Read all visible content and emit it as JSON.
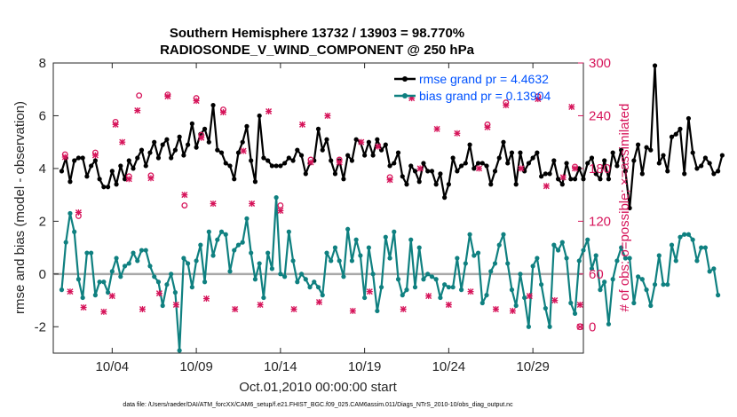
{
  "chart_data": {
    "type": "line",
    "title": "Southern Hemisphere 13732 / 13903 = 98.770%",
    "subtitle": "RADIOSONDE_V_WIND_COMPONENT @ 250 hPa",
    "xlabel": "Oct.01,2010 00:00:00 start",
    "ylabel": "rmse and bias (model - observation)",
    "y2label": "# of obs: o=possible; ×=assimilated",
    "footnote": "data file: /Users/raeder/DAI/ATM_forcXX/CAM6_setup/f.e21.FHIST_BGC.f09_025.CAM6assim.011/Diags_NTrS_2010-10/obs_diag_output.nc",
    "xlim": [
      0.5,
      32.0
    ],
    "ylim": [
      -3,
      8
    ],
    "y2lim": [
      -30,
      300
    ],
    "x_ticks": [
      4,
      9,
      14,
      19,
      24,
      29
    ],
    "x_tick_labels": [
      "10/04",
      "10/09",
      "10/14",
      "10/19",
      "10/24",
      "10/29"
    ],
    "y_ticks": [
      -2,
      0,
      2,
      4,
      6,
      8
    ],
    "y_tick_labels": [
      "-2",
      "0",
      "2",
      "4",
      "6",
      "8"
    ],
    "y2_ticks": [
      0,
      60,
      120,
      180,
      240,
      300
    ],
    "y2_tick_labels": [
      "0",
      "60",
      "120",
      "180",
      "240",
      "300"
    ],
    "colors": {
      "rmse": "#000000",
      "bias": "#0f8080",
      "obs": "#d6145a",
      "zero_line": "#a9a9a9",
      "legend_text": "#0052ff"
    },
    "x_start": 1.0,
    "x_step": 0.25,
    "series": [
      {
        "name": "rmse grand pr = 4.4632",
        "marker": "circle-filled",
        "values": [
          3.9,
          4.4,
          3.5,
          4.3,
          4.4,
          4.4,
          3.7,
          4.1,
          4.3,
          3.6,
          3.3,
          3.3,
          3.9,
          3.4,
          4.1,
          3.6,
          4.3,
          4.0,
          4.4,
          4.7,
          4.1,
          4.6,
          5.0,
          4.4,
          4.9,
          5.1,
          4.4,
          4.7,
          5.2,
          4.5,
          4.9,
          5.7,
          4.8,
          5.3,
          5.5,
          5.0,
          6.4,
          4.7,
          4.6,
          4.2,
          4.1,
          3.6,
          4.6,
          5.0,
          5.6,
          4.3,
          3.5,
          6.0,
          4.4,
          4.3,
          4.1,
          4.1,
          4.1,
          4.2,
          4.4,
          4.3,
          4.7,
          4.5,
          3.8,
          4.2,
          4.3,
          5.5,
          4.7,
          5.1,
          4.3,
          3.8,
          4.3,
          3.6,
          4.5,
          4.3,
          5.1,
          5.0,
          4.5,
          5.0,
          4.5,
          5.1,
          4.7,
          4.9,
          4.1,
          4.2,
          4.6,
          3.7,
          3.4,
          4.1,
          3.9,
          3.5,
          4.2,
          3.9,
          3.9,
          3.4,
          3.8,
          2.9,
          3.4,
          4.4,
          3.9,
          4.1,
          4.2,
          4.9,
          4.0,
          4.2,
          4.2,
          4.1,
          3.4,
          3.9,
          4.4,
          5.0,
          4.2,
          4.6,
          3.4,
          4.6,
          3.9,
          4.2,
          4.4,
          4.6,
          3.7,
          3.8,
          3.8,
          4.3,
          3.6,
          3.4,
          4.2,
          3.6,
          3.6,
          4.0,
          3.6,
          4.2,
          4.4,
          3.8,
          3.6,
          4.3,
          3.6,
          4.6,
          4.1,
          4.7,
          3.9,
          2.5,
          4.3,
          4.9,
          3.8,
          4.8,
          4.7,
          7.9,
          4.2,
          4.5,
          3.9,
          5.2,
          5.3,
          5.5,
          3.8,
          5.9,
          4.6,
          4.0,
          4.1,
          4.4,
          4.2,
          3.8,
          3.9,
          4.5
        ]
      },
      {
        "name": "bias grand pr = 0.13904",
        "marker": "circle-filled",
        "values": [
          -0.6,
          1.2,
          2.3,
          1.6,
          -0.2,
          -0.9,
          0.8,
          0.8,
          -0.8,
          -0.3,
          -0.3,
          -0.7,
          0.1,
          0.6,
          -0.1,
          0.3,
          0.4,
          0.8,
          0.5,
          0.9,
          0.9,
          0.3,
          -0.1,
          -0.3,
          -1.2,
          -0.4,
          0.0,
          -0.7,
          -2.9,
          0.6,
          0.4,
          -0.5,
          0.5,
          1.1,
          -0.3,
          1.6,
          0.7,
          1.3,
          1.6,
          1.5,
          0.1,
          0.9,
          1.1,
          1.2,
          2.1,
          0.8,
          -0.2,
          0.4,
          -0.9,
          0.8,
          0.2,
          2.9,
          0.0,
          -0.1,
          1.6,
          0.5,
          -0.3,
          0.0,
          -0.2,
          -0.5,
          -0.3,
          -0.5,
          -0.8,
          0.8,
          0.5,
          1.0,
          0.5,
          -0.1,
          1.7,
          0.5,
          1.3,
          0.7,
          -0.9,
          1.0,
          0.0,
          -1.4,
          -0.5,
          1.4,
          0.6,
          1.6,
          -0.2,
          -0.8,
          -0.6,
          1.3,
          -0.5,
          1.0,
          -0.2,
          0.0,
          -0.1,
          -0.2,
          -0.9,
          -0.4,
          -0.5,
          -0.5,
          0.6,
          -0.6,
          0.4,
          1.5,
          0.7,
          0.8,
          -1.1,
          -0.8,
          0.1,
          0.4,
          1.1,
          1.5,
          0.4,
          -0.6,
          -1.2,
          0.0,
          -0.9,
          -2.0,
          0.3,
          0.6,
          -0.4,
          -1.3,
          -2.0,
          1.1,
          0.9,
          1.2,
          0.6,
          -1.1,
          -1.5,
          0.5,
          0.9,
          1.3,
          0.2,
          0.7,
          -0.6,
          -0.3,
          -1.9,
          -0.2,
          0.5,
          1.0,
          0.6,
          0.6,
          -1.1,
          -0.1,
          -0.2,
          -0.6,
          -1.2,
          -0.4,
          0.7,
          -0.4,
          -0.4,
          1.1,
          0.5,
          1.4,
          1.5,
          1.5,
          1.3,
          0.5,
          1.0,
          1.0,
          0.1,
          0.2,
          -0.8
        ]
      }
    ],
    "obs_possible": [
      {
        "x": 1.2,
        "y": 196
      },
      {
        "x": 2.0,
        "y": 126
      },
      {
        "x": 3.0,
        "y": 198
      },
      {
        "x": 4.2,
        "y": 233
      },
      {
        "x": 5.0,
        "y": 171
      },
      {
        "x": 5.6,
        "y": 263
      },
      {
        "x": 6.3,
        "y": 172
      },
      {
        "x": 7.3,
        "y": 264
      },
      {
        "x": 8.3,
        "y": 138
      },
      {
        "x": 9.0,
        "y": 260
      },
      {
        "x": 9.3,
        "y": 218
      },
      {
        "x": 10.6,
        "y": 247
      },
      {
        "x": 14.0,
        "y": 138
      },
      {
        "x": 15.8,
        "y": 190
      },
      {
        "x": 17.5,
        "y": 190
      },
      {
        "x": 20.5,
        "y": 170
      },
      {
        "x": 26.3,
        "y": 230
      },
      {
        "x": 27.4,
        "y": 255
      },
      {
        "x": 29.3,
        "y": 262
      },
      {
        "x": 31.5,
        "y": 182
      }
    ],
    "obs_assimilated": [
      {
        "x": 1.2,
        "y": 193
      },
      {
        "x": 1.5,
        "y": 40
      },
      {
        "x": 2.0,
        "y": 130
      },
      {
        "x": 2.3,
        "y": 22
      },
      {
        "x": 3.0,
        "y": 195
      },
      {
        "x": 3.5,
        "y": 17
      },
      {
        "x": 4.0,
        "y": 35
      },
      {
        "x": 4.2,
        "y": 230
      },
      {
        "x": 4.6,
        "y": 210
      },
      {
        "x": 5.0,
        "y": 168
      },
      {
        "x": 5.5,
        "y": 246
      },
      {
        "x": 5.8,
        "y": 20
      },
      {
        "x": 6.3,
        "y": 169
      },
      {
        "x": 6.8,
        "y": 38
      },
      {
        "x": 7.3,
        "y": 262
      },
      {
        "x": 7.8,
        "y": 25
      },
      {
        "x": 8.3,
        "y": 150
      },
      {
        "x": 9.0,
        "y": 257
      },
      {
        "x": 9.3,
        "y": 215
      },
      {
        "x": 9.6,
        "y": 32
      },
      {
        "x": 10.0,
        "y": 140
      },
      {
        "x": 10.6,
        "y": 244
      },
      {
        "x": 11.3,
        "y": 20
      },
      {
        "x": 11.8,
        "y": 200
      },
      {
        "x": 12.3,
        "y": 140
      },
      {
        "x": 12.8,
        "y": 25
      },
      {
        "x": 13.3,
        "y": 245
      },
      {
        "x": 14.0,
        "y": 132
      },
      {
        "x": 14.8,
        "y": 20
      },
      {
        "x": 15.3,
        "y": 230
      },
      {
        "x": 15.8,
        "y": 187
      },
      {
        "x": 16.3,
        "y": 28
      },
      {
        "x": 16.8,
        "y": 240
      },
      {
        "x": 17.5,
        "y": 187
      },
      {
        "x": 18.3,
        "y": 18
      },
      {
        "x": 18.8,
        "y": 210
      },
      {
        "x": 19.3,
        "y": 40
      },
      {
        "x": 19.8,
        "y": 205
      },
      {
        "x": 20.5,
        "y": 167
      },
      {
        "x": 21.3,
        "y": 20
      },
      {
        "x": 21.8,
        "y": 260
      },
      {
        "x": 22.3,
        "y": 180
      },
      {
        "x": 22.8,
        "y": 35
      },
      {
        "x": 23.3,
        "y": 225
      },
      {
        "x": 24.0,
        "y": 25
      },
      {
        "x": 24.5,
        "y": 220
      },
      {
        "x": 25.3,
        "y": 40
      },
      {
        "x": 25.8,
        "y": 180
      },
      {
        "x": 26.3,
        "y": 227
      },
      {
        "x": 26.8,
        "y": 20
      },
      {
        "x": 27.4,
        "y": 252
      },
      {
        "x": 27.8,
        "y": 18
      },
      {
        "x": 28.3,
        "y": 180
      },
      {
        "x": 28.8,
        "y": 35
      },
      {
        "x": 29.3,
        "y": 259
      },
      {
        "x": 29.8,
        "y": 160
      },
      {
        "x": 30.3,
        "y": 30
      },
      {
        "x": 30.8,
        "y": 170
      },
      {
        "x": 31.3,
        "y": 250
      },
      {
        "x": 31.5,
        "y": 180
      },
      {
        "x": 31.8,
        "y": 25
      }
    ],
    "obs_zero": [
      {
        "x": 31.8,
        "y": 0
      }
    ],
    "legend": {
      "rmse": "rmse grand pr = 4.4632",
      "bias": "bias grand pr = 0.13904",
      "placement": "top-right"
    }
  }
}
